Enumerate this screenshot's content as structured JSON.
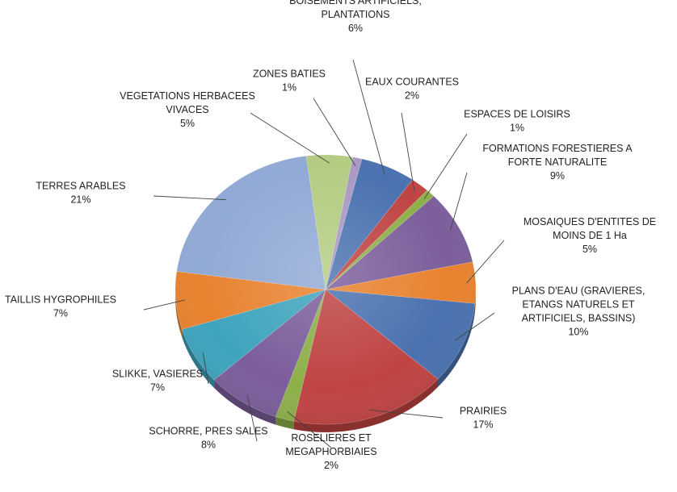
{
  "chart_data": {
    "type": "pie",
    "title": "",
    "slices": [
      {
        "label": [
          "BOISEMENTS ARTIFICIELS,",
          "PLANTATIONS"
        ],
        "percent_label": "6%",
        "value": 6,
        "color": "#4a72b0"
      },
      {
        "label": [
          "EAUX COURANTES"
        ],
        "percent_label": "2%",
        "value": 2,
        "color": "#bf4443"
      },
      {
        "label": [
          "ESPACES DE LOISIRS"
        ],
        "percent_label": "1%",
        "value": 1,
        "color": "#8db04a"
      },
      {
        "label": [
          "FORMATIONS FORESTIERES A",
          "FORTE NATURALITE"
        ],
        "percent_label": "9%",
        "value": 9,
        "color": "#7b5e9b"
      },
      {
        "label": [
          "MOSAIQUES D'ENTITES DE",
          "MOINS DE 1 Ha"
        ],
        "percent_label": "5%",
        "value": 5,
        "color": "#e8822f"
      },
      {
        "label": [
          "PLANS D'EAU (GRAVIERES,",
          "ETANGS NATURELS ET",
          "ARTIFICIELS, BASSINS)"
        ],
        "percent_label": "10%",
        "value": 10,
        "color": "#4a72b0"
      },
      {
        "label": [
          "PRAIRIES"
        ],
        "percent_label": "17%",
        "value": 17,
        "color": "#bf4443"
      },
      {
        "label": [
          "ROSELIERES ET",
          "MEGAPHORBIAIES"
        ],
        "percent_label": "2%",
        "value": 2,
        "color": "#8db04a"
      },
      {
        "label": [
          "SCHORRE, PRES SALES"
        ],
        "percent_label": "8%",
        "value": 8,
        "color": "#7b5e9b"
      },
      {
        "label": [
          "SLIKKE, VASIERES"
        ],
        "percent_label": "7%",
        "value": 7,
        "color": "#3ea4bd"
      },
      {
        "label": [
          "TAILLIS HYGROPHILES"
        ],
        "percent_label": "7%",
        "value": 7,
        "color": "#e8822f"
      },
      {
        "label": [
          "TERRES ARABLES"
        ],
        "percent_label": "21%",
        "value": 21,
        "color": "#91a9d5"
      },
      {
        "label": [
          "VEGETATIONS HERBACEES",
          "VIVACES"
        ],
        "percent_label": "5%",
        "value": 5,
        "color": "#b3cc82"
      },
      {
        "label": [
          "ZONES BATIES"
        ],
        "percent_label": "1%",
        "value": 1,
        "color": "#aa99c3"
      }
    ],
    "legend": "none"
  }
}
